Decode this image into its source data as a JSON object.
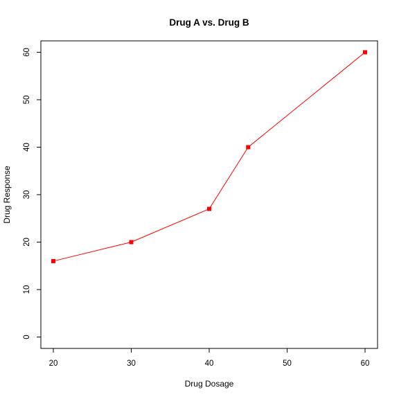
{
  "chart_data": {
    "type": "line",
    "title": "Drug A vs. Drug B",
    "xlabel": "Drug Dosage",
    "ylabel": "Drug Response",
    "xlim": [
      18.4,
      61.6
    ],
    "ylim": [
      -2.4,
      62.4
    ],
    "x_ticks": [
      20,
      30,
      40,
      50,
      60
    ],
    "y_ticks": [
      0,
      10,
      20,
      30,
      40,
      50,
      60
    ],
    "grid": false,
    "series": [
      {
        "x": [
          20,
          30,
          40,
          45,
          60
        ],
        "y": [
          16,
          20,
          27,
          40,
          60
        ],
        "color": "#ff0000",
        "marker": "square"
      }
    ]
  }
}
